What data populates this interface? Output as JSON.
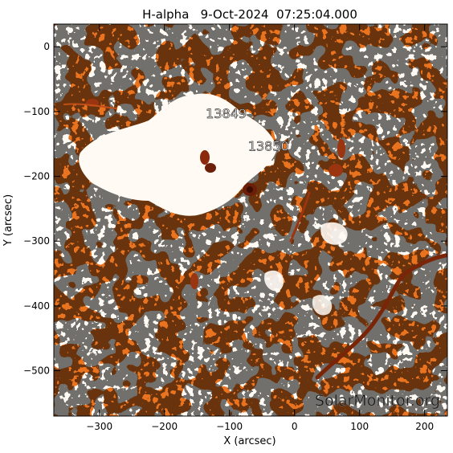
{
  "title": "H-alpha   9-Oct-2024  07:25:04.000",
  "axes": {
    "xlabel": "X (arcsec)",
    "ylabel": "Y (arcsec)",
    "xticks": [
      "-300",
      "-200",
      "-100",
      "0",
      "100",
      "200"
    ],
    "yticks": [
      "0",
      "-100",
      "-200",
      "-300",
      "-400",
      "-500"
    ],
    "xlim": [
      -370,
      235
    ],
    "ylim": [
      -570,
      35
    ]
  },
  "regions": [
    {
      "label": "13849",
      "x": -105,
      "y": -110
    },
    {
      "label": "13850",
      "x": -40,
      "y": -160
    }
  ],
  "watermark": "SolarMonitor.org",
  "colors": {
    "solar_orange": "#e9731f",
    "plage_white": "#fff8f0",
    "dark_filament": "#8b2a0c",
    "frame": "#000000"
  }
}
